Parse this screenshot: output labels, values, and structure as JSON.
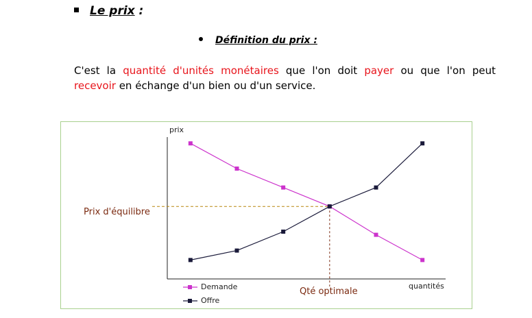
{
  "section": {
    "title": "Le prix",
    "colon": " :"
  },
  "subsection": {
    "title": "Définition du prix :"
  },
  "paragraph": {
    "p1": "C'est la ",
    "h1": "quantité d'unités monétaires",
    "p2": " que l'on doit ",
    "h2": "payer",
    "p3": " ou que l'on peut ",
    "h3": "recevoir",
    "p4": " en échange d'un bien ou d'un service."
  },
  "colors": {
    "highlight": "#e8141b",
    "demande": "#cc33cc",
    "offre": "#1a1a3a",
    "annotation": "#7b2a10",
    "box_border": "#a8d08d"
  },
  "chart_data": {
    "type": "line",
    "ylabel": "prix",
    "xlabel": "quantités",
    "x": [
      1,
      2,
      3,
      4,
      5,
      6
    ],
    "series": [
      {
        "name": "Demande",
        "values": [
          5.3,
          4.5,
          3.9,
          3.3,
          2.4,
          1.6
        ],
        "color": "#cc33cc"
      },
      {
        "name": "Offre",
        "values": [
          1.6,
          1.9,
          2.5,
          3.3,
          3.9,
          5.3
        ],
        "color": "#1a1a3a"
      }
    ],
    "equilibrium_label": "Prix d'équilibre",
    "equilibrium_x_label": "Qté optimale",
    "equilibrium": {
      "x": 4,
      "y": 3.3
    },
    "xlim": [
      0.5,
      6.5
    ],
    "ylim": [
      1.0,
      5.5
    ],
    "grid": false,
    "legend_position": "bottom-left"
  }
}
